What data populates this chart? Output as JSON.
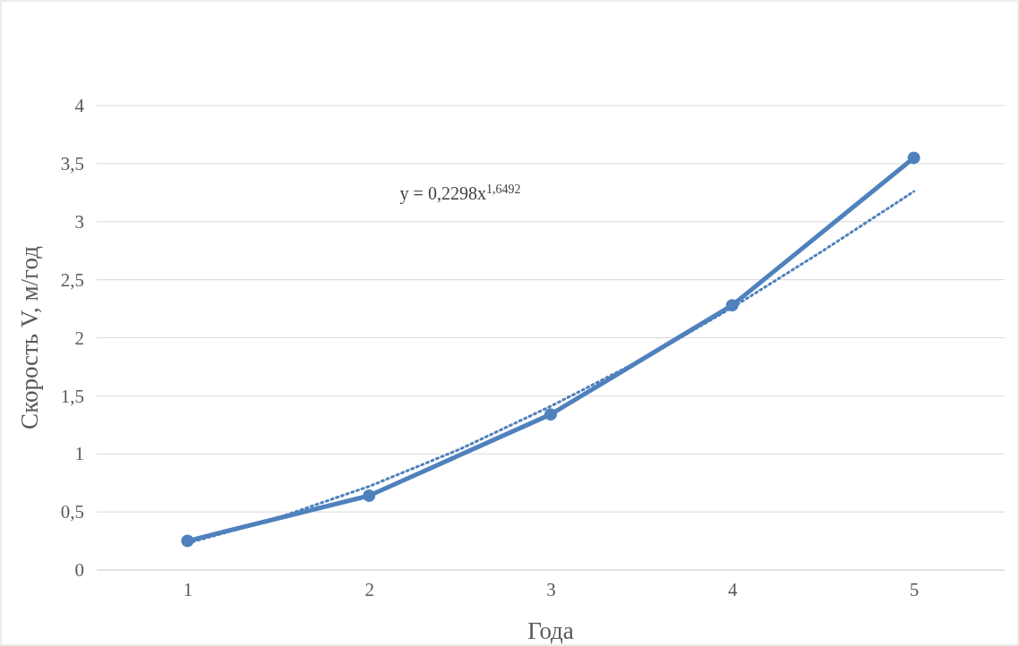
{
  "chart_data": {
    "type": "line",
    "xlabel": "Года",
    "ylabel": "Скорость V, м/год",
    "x": [
      1,
      2,
      3,
      4,
      5
    ],
    "series": [
      {
        "color": "#4f81bd",
        "values": [
          0.25,
          0.64,
          1.34,
          2.28,
          3.55
        ],
        "marker": "circle",
        "line_style": "solid"
      },
      {
        "color": "#4f81bd",
        "x": [
          1,
          1.5,
          2,
          2.5,
          3,
          3.5,
          4,
          4.5,
          5
        ],
        "values": [
          0.23,
          0.45,
          0.72,
          1.04,
          1.41,
          1.81,
          2.26,
          2.75,
          3.26
        ],
        "marker": "none",
        "line_style": "dotted"
      }
    ],
    "xlim": [
      0.5,
      5.5
    ],
    "xticks": [
      1,
      2,
      3,
      4,
      5
    ],
    "ylim": [
      0,
      4
    ],
    "yticks": [
      0,
      {
        "value": 0.5,
        "label": "0,5"
      },
      1,
      {
        "value": 1.5,
        "label": "1,5"
      },
      2,
      {
        "value": 2.5,
        "label": "2,5"
      },
      3,
      {
        "value": 3.5,
        "label": "3,5"
      },
      4
    ],
    "grid": "y",
    "annotations": [
      "y = 0,2298x$^{1,6492}$"
    ]
  }
}
